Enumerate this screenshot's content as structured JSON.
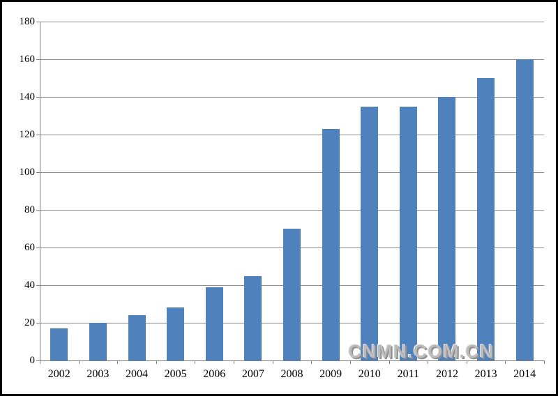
{
  "chart_data": {
    "type": "bar",
    "title": "",
    "xlabel": "",
    "ylabel": "",
    "categories": [
      "2002",
      "2003",
      "2004",
      "2005",
      "2006",
      "2007",
      "2008",
      "2009",
      "2010",
      "2011",
      "2012",
      "2013",
      "2014"
    ],
    "values": [
      17,
      20,
      24,
      28,
      39,
      45,
      70,
      123,
      135,
      135,
      140,
      150,
      160
    ],
    "ylim": [
      0,
      180
    ],
    "ytick_step": 20,
    "yticks": [
      0,
      20,
      40,
      60,
      80,
      100,
      120,
      140,
      160,
      180
    ],
    "grid": true,
    "legend": false,
    "bar_color": "#4f81bd",
    "gridline_color": "#8c8c8c",
    "axis_color": "#7f7f7f",
    "label_color": "#000000"
  },
  "watermark": {
    "text": "CNMN.COM.CN"
  }
}
